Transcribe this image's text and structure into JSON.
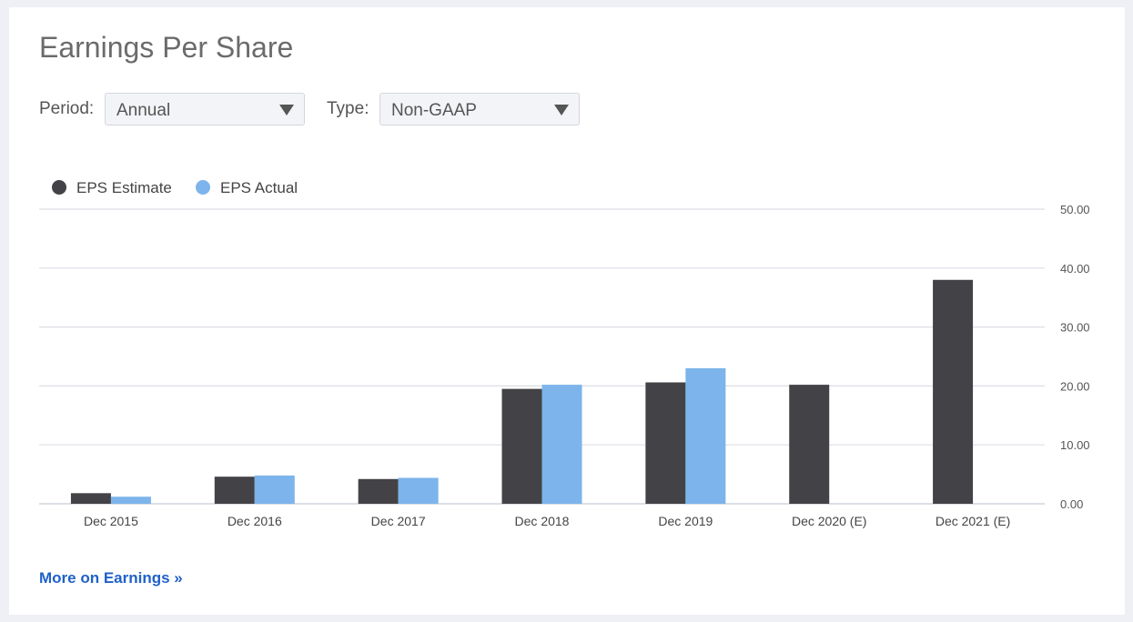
{
  "header": {
    "title": "Earnings Per Share"
  },
  "controls": {
    "period_label": "Period:",
    "period_value": "Annual",
    "type_label": "Type:",
    "type_value": "Non-GAAP"
  },
  "legend": [
    {
      "label": "EPS Estimate",
      "color": "#434347"
    },
    {
      "label": "EPS Actual",
      "color": "#7cb4eb"
    }
  ],
  "link": {
    "more_label": "More on Earnings »"
  },
  "chart_data": {
    "type": "bar",
    "categories": [
      "Dec 2015",
      "Dec 2016",
      "Dec 2017",
      "Dec 2018",
      "Dec 2019",
      "Dec 2020 (E)",
      "Dec 2021 (E)"
    ],
    "series": [
      {
        "name": "EPS Estimate",
        "color": "#434347",
        "values": [
          1.8,
          4.6,
          4.2,
          19.5,
          20.6,
          20.2,
          38.0
        ]
      },
      {
        "name": "EPS Actual",
        "color": "#7cb4eb",
        "values": [
          1.2,
          4.8,
          4.4,
          20.2,
          23.0,
          null,
          null
        ]
      }
    ],
    "y_ticks": [
      "0.00",
      "10.00",
      "20.00",
      "30.00",
      "40.00",
      "50.00"
    ],
    "ylim": [
      0,
      50
    ],
    "grid": true,
    "y_axis_position": "right",
    "legend_position": "top-left"
  }
}
